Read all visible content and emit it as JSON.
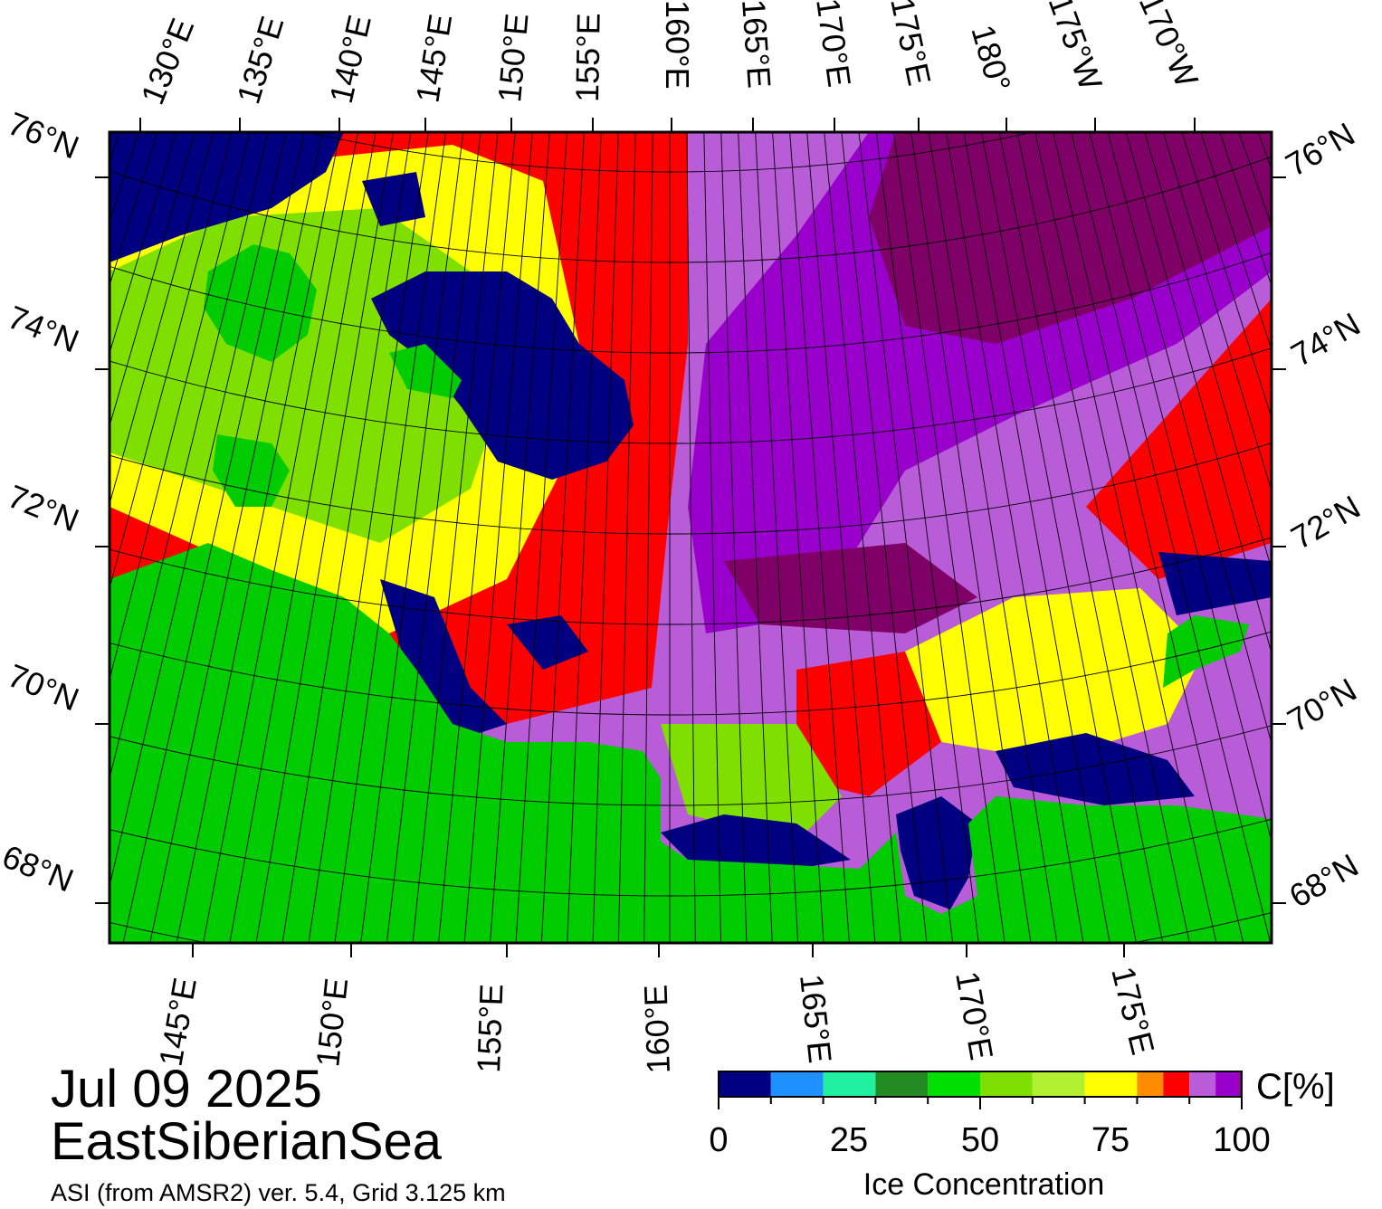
{
  "map": {
    "top_lon_labels": [
      "130°E",
      "135°E",
      "140°E",
      "145°E",
      "150°E",
      "155°E",
      "160°E",
      "165°E",
      "170°E",
      "175°E",
      "180°",
      "175°W",
      "170°W"
    ],
    "bottom_lon_labels": [
      "145°E",
      "150°E",
      "155°E",
      "160°E",
      "165°E",
      "170°E",
      "175°E"
    ],
    "left_lat_labels": [
      "76°N",
      "74°N",
      "72°N",
      "70°N",
      "68°N"
    ],
    "right_lat_labels": [
      "76°N",
      "74°N",
      "72°N",
      "70°N",
      "68°N"
    ],
    "colors": {
      "land": "#00cc00",
      "open_water": "#000080",
      "frame": "#000000",
      "land_gray": "#7f7f7f"
    }
  },
  "colorbar": {
    "title": "Ice Concentration",
    "unit": "C[%]",
    "ticks": [
      "0",
      "25",
      "50",
      "75",
      "100"
    ],
    "colors": [
      "#000080",
      "#1e90ff",
      "#20f0a0",
      "#228b22",
      "#00e000",
      "#7fe000",
      "#b0f030",
      "#ffff00",
      "#ff8c00",
      "#ff0000",
      "#b85cd8",
      "#9900cc",
      "#7f0066"
    ]
  },
  "footer": {
    "date": "Jul 09 2025",
    "region": "EastSiberianSea",
    "source": "ASI (from AMSR2) ver. 5.4,  Grid 3.125 km"
  }
}
